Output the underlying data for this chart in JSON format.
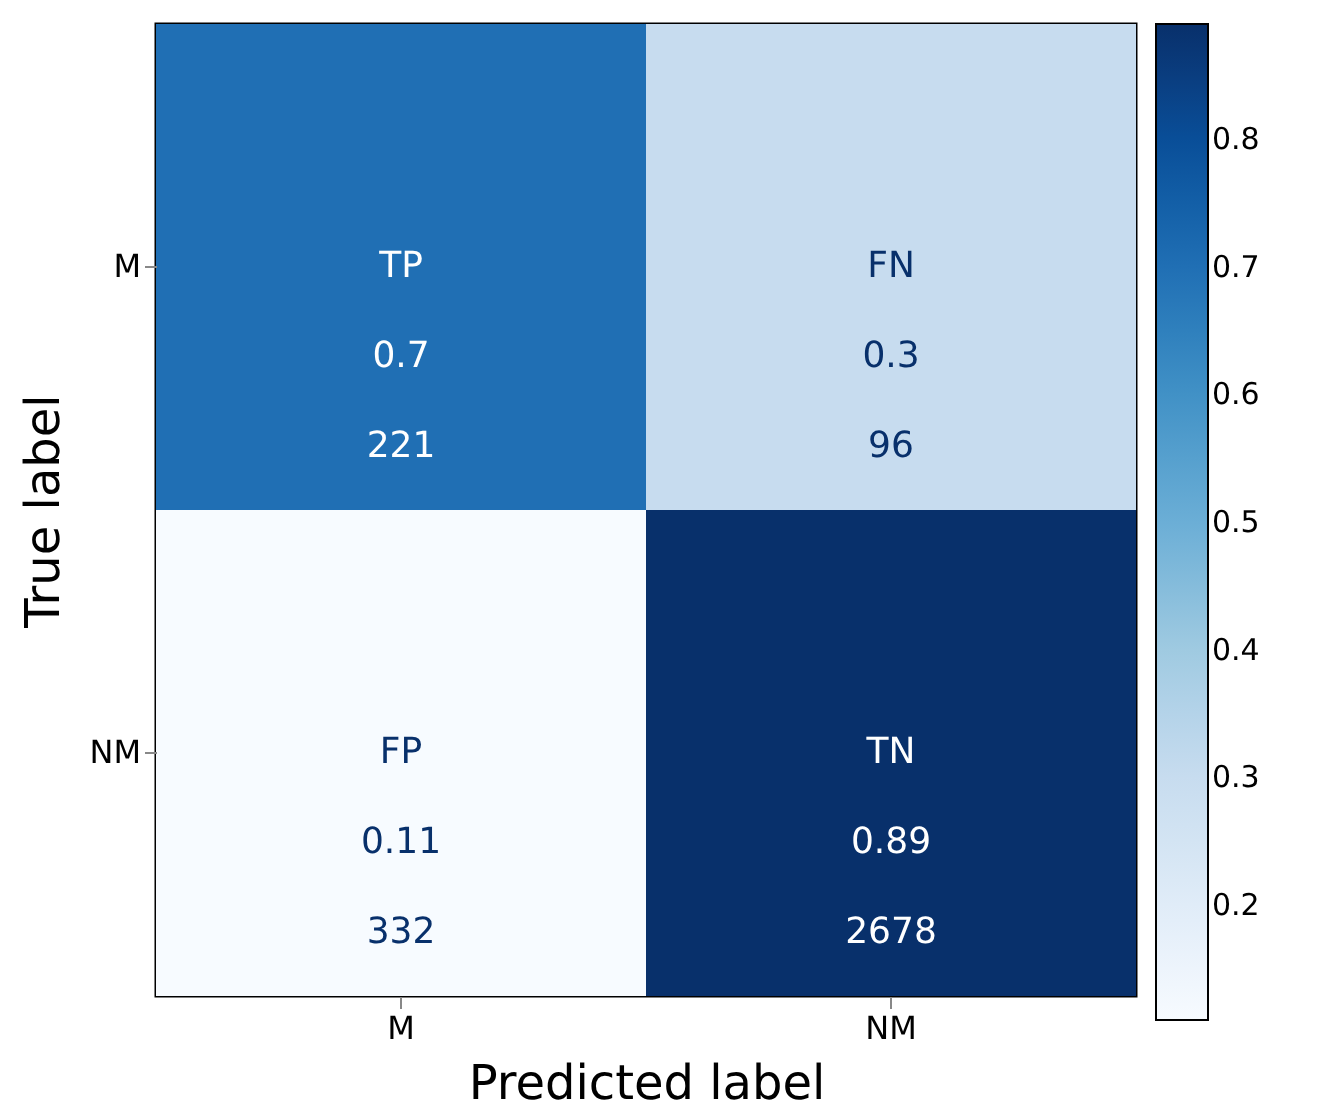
{
  "chart_data": {
    "type": "heatmap",
    "xlabel": "Predicted label",
    "ylabel": "True label",
    "categories": [
      "M",
      "NM"
    ],
    "y_categories": [
      "M",
      "NM"
    ],
    "cells": [
      [
        0.7,
        0.3
      ],
      [
        0.11,
        0.89
      ]
    ],
    "cell_labels": [
      [
        "TP\n0.7\n221",
        "FN\n0.3\n96"
      ],
      [
        "FP\n0.11\n332",
        "TN\n0.89\n2678"
      ]
    ],
    "clim": [
      0.11,
      0.89
    ],
    "cticks": [
      0.2,
      0.3,
      0.4,
      0.5,
      0.6,
      0.7,
      0.8
    ]
  }
}
